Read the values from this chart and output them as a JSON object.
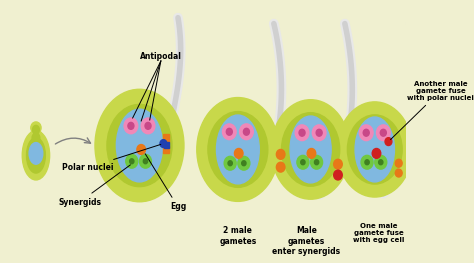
{
  "bg_color": "#f0f0d0",
  "outer_ovule_color": "#c8d84a",
  "inner_ovule_color": "#b0c830",
  "embryo_sac_color": "#80b8e0",
  "tube_color": "#e8e8e8",
  "tube_outline": "#d0d0d0",
  "pink_cell_color": "#f088b8",
  "pink_nucleus_color": "#c84888",
  "orange_dot_color": "#e87818",
  "green_cell_color": "#70c840",
  "green_nucleus_color": "#408020",
  "red_dot_color": "#d02020",
  "blue_dot_color": "#2040b0",
  "label_antipodal": "Antipodal",
  "label_polar": "Polar nuclei",
  "label_synergids": "Synergids",
  "label_egg": "Egg",
  "label_2male": "2 male\ngametes",
  "label_enter": "Male\ngametes\nenter synergids",
  "label_one_male": "One male\ngamete fuse\nwith egg cell",
  "label_another_male": "Another male\ngamete fuse\nwith polar nuclei"
}
